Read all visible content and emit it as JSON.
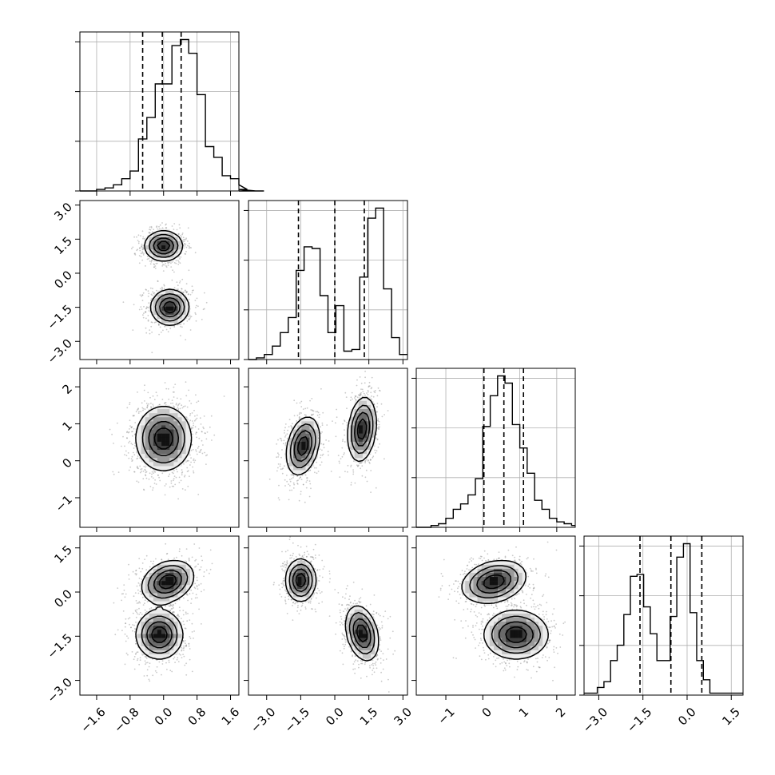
{
  "chart_data": {
    "type": "corner",
    "title": "",
    "grid": true,
    "colors": {
      "line": "#000000",
      "grid": "#b0b0b0",
      "points": "#8a8a8a",
      "background": "#ffffff"
    },
    "parameters": [
      {
        "range": [
          -2.0,
          1.8
        ],
        "ticks": [
          -1.6,
          -0.8,
          0.0,
          0.8,
          1.6
        ],
        "tick_labels": [
          "−1.6",
          "−0.8",
          "0.0",
          "0.8",
          "1.6"
        ],
        "quantiles": [
          -0.5,
          -0.03,
          0.42
        ],
        "hist": {
          "edges_start": -2.0,
          "bin_width": 0.2,
          "counts": [
            0,
            0,
            1,
            2,
            4,
            8,
            13,
            34,
            48,
            70,
            70,
            95,
            99,
            90,
            63,
            29,
            22,
            10,
            8,
            4,
            1,
            0,
            0
          ]
        }
      },
      {
        "range": [
          -3.8,
          3.2
        ],
        "ticks": [
          -3.0,
          -1.5,
          0.0,
          1.5,
          3.0
        ],
        "tick_labels": [
          "−3.0",
          "−1.5",
          "0.0",
          "1.5",
          "3.0"
        ],
        "quantiles": [
          -1.6,
          0.0,
          1.3
        ],
        "hist": {
          "edges_start": -3.8,
          "bin_width": 0.35,
          "counts": [
            0,
            1,
            3,
            8,
            16,
            25,
            53,
            67,
            66,
            38,
            16,
            32,
            5,
            6,
            49,
            84,
            90,
            42,
            13,
            3
          ]
        }
      },
      {
        "range": [
          -1.8,
          2.5
        ],
        "ticks": [
          -1,
          0,
          1,
          2
        ],
        "tick_labels": [
          "−1",
          "0",
          "1",
          "2"
        ],
        "quantiles": [
          0.03,
          0.57,
          1.1
        ],
        "hist": {
          "edges_start": -1.8,
          "bin_width": 0.2,
          "counts": [
            0,
            0,
            1,
            2,
            5,
            10,
            13,
            18,
            27,
            56,
            73,
            84,
            80,
            57,
            44,
            30,
            15,
            10,
            5,
            3,
            2,
            1
          ]
        }
      },
      {
        "range": [
          -3.5,
          1.9
        ],
        "ticks": [
          -3.0,
          -1.5,
          0.0,
          1.5
        ],
        "tick_labels": [
          "−3.0",
          "−1.5",
          "0.0",
          "1.5"
        ],
        "quantiles": [
          -1.6,
          -0.55,
          0.5
        ],
        "hist": {
          "edges_start": -3.5,
          "bin_width": 0.225,
          "counts": [
            1,
            1,
            4,
            7,
            18,
            26,
            42,
            62,
            63,
            46,
            32,
            18,
            18,
            41,
            72,
            79,
            43,
            18,
            8,
            1,
            1,
            1,
            1,
            1
          ]
        }
      }
    ],
    "clusters": [
      {
        "pair": [
          1,
          0
        ],
        "components": [
          {
            "cx": 0.0,
            "cy": 1.2,
            "sx": 0.22,
            "sy": 0.32,
            "rho": 0.0
          },
          {
            "cx": 0.15,
            "cy": -1.5,
            "sx": 0.22,
            "sy": 0.38,
            "rho": 0.0
          }
        ]
      },
      {
        "pair": [
          2,
          0
        ],
        "components": [
          {
            "cx": 0.0,
            "cy": 0.6,
            "sx": 0.32,
            "sy": 0.42,
            "rho": 0.0
          }
        ]
      },
      {
        "pair": [
          2,
          1
        ],
        "components": [
          {
            "cx": -1.4,
            "cy": 0.4,
            "sx": 0.35,
            "sy": 0.38,
            "rho": 0.3
          },
          {
            "cx": 1.2,
            "cy": 0.85,
            "sx": 0.3,
            "sy": 0.42,
            "rho": 0.2
          }
        ]
      },
      {
        "pair": [
          3,
          0
        ],
        "components": [
          {
            "cx": 0.1,
            "cy": 0.35,
            "sx": 0.3,
            "sy": 0.35,
            "rho": 0.25
          },
          {
            "cx": -0.1,
            "cy": -1.45,
            "sx": 0.27,
            "sy": 0.4,
            "rho": 0.0
          }
        ]
      },
      {
        "pair": [
          3,
          1
        ],
        "components": [
          {
            "cx": -1.5,
            "cy": 0.4,
            "sx": 0.32,
            "sy": 0.35,
            "rho": 0.0
          },
          {
            "cx": 1.2,
            "cy": -1.4,
            "sx": 0.35,
            "sy": 0.45,
            "rho": -0.3
          }
        ]
      },
      {
        "pair": [
          3,
          2
        ],
        "components": [
          {
            "cx": 0.3,
            "cy": 0.35,
            "sx": 0.42,
            "sy": 0.35,
            "rho": 0.25
          },
          {
            "cx": 0.9,
            "cy": -1.45,
            "sx": 0.42,
            "sy": 0.4,
            "rho": 0.0
          }
        ]
      }
    ]
  }
}
